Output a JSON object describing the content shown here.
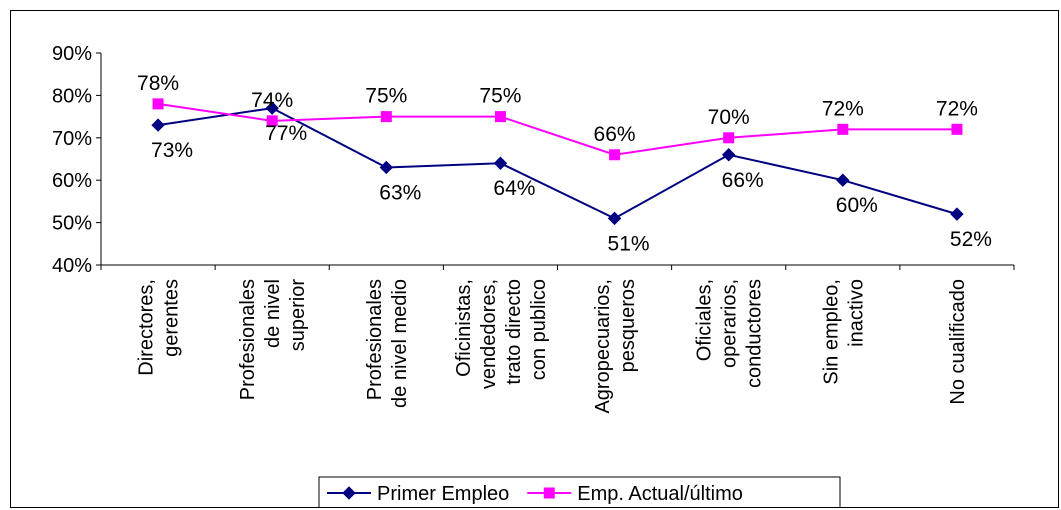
{
  "chart_data": {
    "type": "line",
    "categories": [
      [
        "Directores,",
        "gerentes"
      ],
      [
        "Profesionales",
        "de nivel",
        "superior"
      ],
      [
        "Profesionales",
        "de nivel medio"
      ],
      [
        "Oficinistas,",
        "vendedores,",
        "trato directo",
        "con publico"
      ],
      [
        "Agropecuarios,",
        "pesqueros"
      ],
      [
        "Oficiales,",
        "operarios,",
        "conductores"
      ],
      [
        "Sin empleo,",
        "inactivo"
      ],
      [
        "No cualificado"
      ]
    ],
    "series": [
      {
        "name": "Primer Empleo",
        "color": "#000080",
        "marker": "diamond",
        "values": [
          73,
          77,
          63,
          64,
          51,
          66,
          60,
          52
        ],
        "labels": [
          "73%",
          "77%",
          "63%",
          "64%",
          "51%",
          "66%",
          "60%",
          "52%"
        ]
      },
      {
        "name": "Emp. Actual/último",
        "color": "#FF00FF",
        "marker": "square",
        "values": [
          78,
          74,
          75,
          75,
          66,
          70,
          72,
          72
        ],
        "labels": [
          "78%",
          "74%",
          "75%",
          "75%",
          "66%",
          "70%",
          "72%",
          "72%"
        ]
      }
    ],
    "y_ticks": [
      "40%",
      "50%",
      "60%",
      "70%",
      "80%",
      "90%"
    ],
    "ylim": [
      40,
      90
    ],
    "y_step": 10,
    "grid": false,
    "legend_position": "bottom"
  }
}
